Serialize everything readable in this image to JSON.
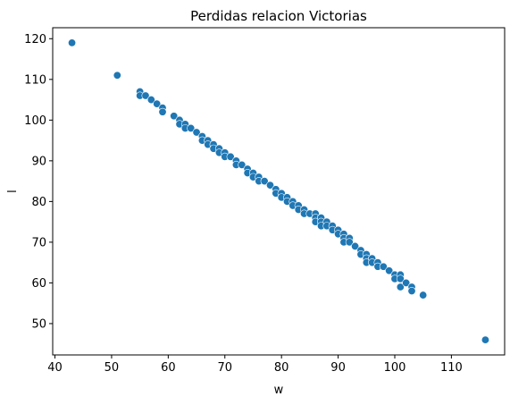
{
  "chart_data": {
    "type": "scatter",
    "title": "Perdidas relacion Victorias",
    "xlabel": "w",
    "ylabel": "l",
    "xlim": [
      39.6,
      119.4
    ],
    "ylim": [
      42.3,
      122.7
    ],
    "xticks": [
      40,
      50,
      60,
      70,
      80,
      90,
      100,
      110
    ],
    "yticks": [
      50,
      60,
      70,
      80,
      90,
      100,
      110,
      120
    ],
    "grid": false,
    "marker_color": "#1f77b4",
    "marker_edge_color": "#ffffff",
    "points": [
      [
        43,
        119
      ],
      [
        51,
        111
      ],
      [
        55,
        107
      ],
      [
        55,
        106
      ],
      [
        56,
        106
      ],
      [
        57,
        105
      ],
      [
        58,
        104
      ],
      [
        59,
        103
      ],
      [
        59,
        102
      ],
      [
        61,
        101
      ],
      [
        62,
        100
      ],
      [
        62,
        99
      ],
      [
        63,
        99
      ],
      [
        63,
        98
      ],
      [
        64,
        98
      ],
      [
        65,
        97
      ],
      [
        66,
        96
      ],
      [
        66,
        95
      ],
      [
        67,
        95
      ],
      [
        67,
        94
      ],
      [
        68,
        94
      ],
      [
        68,
        93
      ],
      [
        69,
        93
      ],
      [
        69,
        92
      ],
      [
        70,
        92
      ],
      [
        70,
        91
      ],
      [
        71,
        91
      ],
      [
        72,
        90
      ],
      [
        72,
        89
      ],
      [
        73,
        89
      ],
      [
        74,
        88
      ],
      [
        74,
        87
      ],
      [
        75,
        87
      ],
      [
        75,
        86
      ],
      [
        76,
        86
      ],
      [
        76,
        85
      ],
      [
        77,
        85
      ],
      [
        78,
        84
      ],
      [
        79,
        83
      ],
      [
        79,
        82
      ],
      [
        80,
        82
      ],
      [
        80,
        81
      ],
      [
        81,
        81
      ],
      [
        81,
        80
      ],
      [
        82,
        80
      ],
      [
        82,
        79
      ],
      [
        83,
        79
      ],
      [
        83,
        78
      ],
      [
        84,
        78
      ],
      [
        84,
        77
      ],
      [
        85,
        77
      ],
      [
        86,
        77
      ],
      [
        86,
        76
      ],
      [
        86,
        75
      ],
      [
        87,
        76
      ],
      [
        87,
        75
      ],
      [
        87,
        74
      ],
      [
        88,
        75
      ],
      [
        88,
        74
      ],
      [
        89,
        74
      ],
      [
        89,
        73
      ],
      [
        90,
        73
      ],
      [
        90,
        72
      ],
      [
        91,
        72
      ],
      [
        91,
        71
      ],
      [
        91,
        70
      ],
      [
        92,
        71
      ],
      [
        92,
        70
      ],
      [
        93,
        69
      ],
      [
        94,
        68
      ],
      [
        94,
        67
      ],
      [
        95,
        67
      ],
      [
        95,
        66
      ],
      [
        95,
        65
      ],
      [
        96,
        66
      ],
      [
        96,
        65
      ],
      [
        97,
        65
      ],
      [
        97,
        64
      ],
      [
        98,
        64
      ],
      [
        99,
        63
      ],
      [
        100,
        62
      ],
      [
        100,
        61
      ],
      [
        101,
        62
      ],
      [
        101,
        61
      ],
      [
        101,
        59
      ],
      [
        102,
        60
      ],
      [
        103,
        59
      ],
      [
        103,
        58
      ],
      [
        105,
        57
      ],
      [
        116,
        46
      ]
    ]
  }
}
